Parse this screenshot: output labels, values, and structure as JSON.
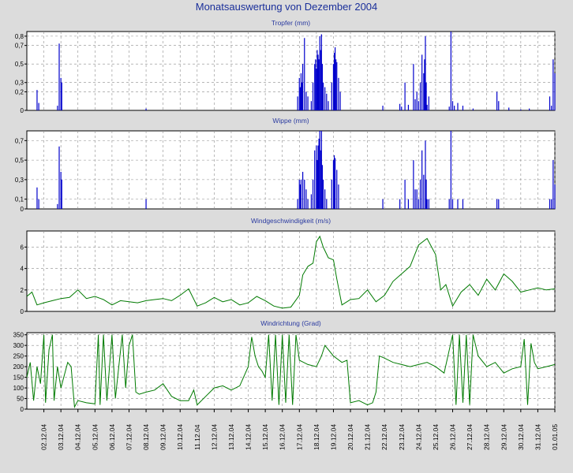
{
  "title": "Monatsauswertung von Dezember 2004",
  "colors": {
    "rain": "#0000cc",
    "wind": "#007a00"
  },
  "chart_data": [
    {
      "type": "bar",
      "title": "Tropfer (mm)",
      "ylim": [
        0,
        0.85
      ],
      "yticks": [
        {
          "v": 0,
          "label": "0"
        },
        {
          "v": 0.2,
          "label": "0,2"
        },
        {
          "v": 0.3,
          "label": "0,3"
        },
        {
          "v": 0.5,
          "label": "0,5"
        },
        {
          "v": 0.7,
          "label": "0,7"
        },
        {
          "v": 0.8,
          "label": "0,8"
        }
      ],
      "grid": true,
      "color": "#0000cc",
      "points": [
        [
          1.6,
          0.22
        ],
        [
          1.7,
          0.08
        ],
        [
          2.8,
          0.05
        ],
        [
          2.9,
          0.72
        ],
        [
          3.0,
          0.35
        ],
        [
          3.05,
          0.3
        ],
        [
          8.0,
          0.02
        ],
        [
          16.9,
          0.15
        ],
        [
          17.0,
          0.35
        ],
        [
          17.05,
          0.25
        ],
        [
          17.1,
          0.4
        ],
        [
          17.15,
          0.3
        ],
        [
          17.2,
          0.5
        ],
        [
          17.3,
          0.78
        ],
        [
          17.4,
          0.2
        ],
        [
          17.5,
          0.15
        ],
        [
          17.7,
          0.1
        ],
        [
          17.8,
          0.3
        ],
        [
          17.9,
          0.5
        ],
        [
          17.95,
          0.55
        ],
        [
          18.0,
          0.45
        ],
        [
          18.05,
          0.65
        ],
        [
          18.1,
          0.6
        ],
        [
          18.15,
          0.55
        ],
        [
          18.2,
          0.8
        ],
        [
          18.25,
          0.65
        ],
        [
          18.3,
          0.82
        ],
        [
          18.35,
          0.5
        ],
        [
          18.4,
          0.3
        ],
        [
          18.5,
          0.25
        ],
        [
          18.6,
          0.18
        ],
        [
          18.7,
          0.1
        ],
        [
          18.9,
          0.3
        ],
        [
          19.0,
          0.5
        ],
        [
          19.05,
          0.62
        ],
        [
          19.1,
          0.68
        ],
        [
          19.15,
          0.55
        ],
        [
          19.2,
          0.52
        ],
        [
          19.3,
          0.35
        ],
        [
          19.4,
          0.2
        ],
        [
          21.9,
          0.05
        ],
        [
          22.9,
          0.07
        ],
        [
          23.0,
          0.04
        ],
        [
          23.2,
          0.3
        ],
        [
          23.4,
          0.06
        ],
        [
          23.7,
          0.5
        ],
        [
          23.8,
          0.12
        ],
        [
          23.9,
          0.2
        ],
        [
          24.0,
          0.1
        ],
        [
          24.1,
          0.3
        ],
        [
          24.2,
          0.6
        ],
        [
          24.3,
          0.4
        ],
        [
          24.35,
          0.55
        ],
        [
          24.4,
          0.8
        ],
        [
          24.45,
          0.3
        ],
        [
          24.5,
          0.06
        ],
        [
          24.6,
          0.15
        ],
        [
          25.8,
          0.04
        ],
        [
          25.9,
          0.85
        ],
        [
          26.0,
          0.1
        ],
        [
          26.1,
          0.05
        ],
        [
          26.3,
          0.08
        ],
        [
          26.6,
          0.05
        ],
        [
          27.2,
          0.02
        ],
        [
          28.6,
          0.2
        ],
        [
          28.7,
          0.1
        ],
        [
          29.3,
          0.03
        ],
        [
          30.0,
          0.01
        ],
        [
          30.5,
          0.02
        ],
        [
          31.7,
          0.15
        ],
        [
          31.8,
          0.05
        ],
        [
          31.9,
          0.55
        ],
        [
          32.0,
          0.4
        ]
      ]
    },
    {
      "type": "bar",
      "title": "Wippe (mm)",
      "ylim": [
        0,
        0.8
      ],
      "yticks": [
        {
          "v": 0,
          "label": "0"
        },
        {
          "v": 0.1,
          "label": "0,1"
        },
        {
          "v": 0.3,
          "label": "0,3"
        },
        {
          "v": 0.5,
          "label": "0,5"
        },
        {
          "v": 0.7,
          "label": "0,7"
        }
      ],
      "grid": true,
      "color": "#0000cc",
      "points": [
        [
          1.6,
          0.22
        ],
        [
          1.7,
          0.1
        ],
        [
          2.8,
          0.05
        ],
        [
          2.9,
          0.64
        ],
        [
          3.0,
          0.38
        ],
        [
          3.05,
          0.3
        ],
        [
          8.0,
          0.1
        ],
        [
          16.9,
          0.1
        ],
        [
          17.0,
          0.3
        ],
        [
          17.05,
          0.25
        ],
        [
          17.1,
          0.3
        ],
        [
          17.2,
          0.38
        ],
        [
          17.3,
          0.3
        ],
        [
          17.4,
          0.2
        ],
        [
          17.5,
          0.1
        ],
        [
          17.7,
          0.15
        ],
        [
          17.8,
          0.3
        ],
        [
          17.9,
          0.6
        ],
        [
          18.0,
          0.65
        ],
        [
          18.05,
          0.5
        ],
        [
          18.1,
          0.65
        ],
        [
          18.15,
          0.72
        ],
        [
          18.2,
          0.8
        ],
        [
          18.25,
          0.6
        ],
        [
          18.3,
          0.8
        ],
        [
          18.35,
          0.45
        ],
        [
          18.4,
          0.3
        ],
        [
          18.5,
          0.2
        ],
        [
          18.6,
          0.1
        ],
        [
          18.9,
          0.3
        ],
        [
          19.0,
          0.5
        ],
        [
          19.05,
          0.55
        ],
        [
          19.1,
          0.52
        ],
        [
          19.2,
          0.4
        ],
        [
          19.3,
          0.25
        ],
        [
          21.9,
          0.1
        ],
        [
          22.9,
          0.1
        ],
        [
          23.2,
          0.3
        ],
        [
          23.4,
          0.1
        ],
        [
          23.7,
          0.5
        ],
        [
          23.8,
          0.2
        ],
        [
          23.9,
          0.2
        ],
        [
          24.0,
          0.1
        ],
        [
          24.1,
          0.3
        ],
        [
          24.2,
          0.6
        ],
        [
          24.3,
          0.35
        ],
        [
          24.4,
          0.7
        ],
        [
          24.45,
          0.3
        ],
        [
          24.5,
          0.1
        ],
        [
          24.6,
          0.1
        ],
        [
          25.8,
          0.1
        ],
        [
          25.9,
          0.8
        ],
        [
          26.0,
          0.1
        ],
        [
          26.3,
          0.1
        ],
        [
          26.6,
          0.1
        ],
        [
          28.6,
          0.1
        ],
        [
          28.7,
          0.1
        ],
        [
          31.7,
          0.1
        ],
        [
          31.8,
          0.1
        ],
        [
          31.9,
          0.5
        ],
        [
          32.0,
          0.25
        ]
      ]
    },
    {
      "type": "line",
      "title": "Windgeschwindigkeit (m/s)",
      "ylim": [
        0,
        7.5
      ],
      "yticks": [
        {
          "v": 0,
          "label": "0"
        },
        {
          "v": 2,
          "label": "2"
        },
        {
          "v": 4,
          "label": "4"
        },
        {
          "v": 6,
          "label": "6"
        }
      ],
      "grid": true,
      "color": "#007a00",
      "points": [
        [
          1,
          1.4
        ],
        [
          1.3,
          1.8
        ],
        [
          1.6,
          0.6
        ],
        [
          2,
          0.8
        ],
        [
          2.5,
          1.0
        ],
        [
          3,
          1.2
        ],
        [
          3.5,
          1.3
        ],
        [
          4,
          2.0
        ],
        [
          4.5,
          1.2
        ],
        [
          5,
          1.4
        ],
        [
          5.5,
          1.1
        ],
        [
          6,
          0.6
        ],
        [
          6.5,
          1.0
        ],
        [
          7,
          0.9
        ],
        [
          7.5,
          0.8
        ],
        [
          8,
          1.0
        ],
        [
          8.5,
          1.1
        ],
        [
          9,
          1.2
        ],
        [
          9.5,
          1.0
        ],
        [
          10,
          1.5
        ],
        [
          10.5,
          2.1
        ],
        [
          11,
          0.5
        ],
        [
          11.5,
          0.8
        ],
        [
          12,
          1.3
        ],
        [
          12.5,
          0.9
        ],
        [
          13,
          1.1
        ],
        [
          13.5,
          0.6
        ],
        [
          14,
          0.8
        ],
        [
          14.5,
          1.4
        ],
        [
          15,
          1.0
        ],
        [
          15.5,
          0.5
        ],
        [
          16,
          0.3
        ],
        [
          16.5,
          0.4
        ],
        [
          17,
          1.5
        ],
        [
          17.2,
          3.4
        ],
        [
          17.5,
          4.2
        ],
        [
          17.8,
          4.5
        ],
        [
          18,
          6.5
        ],
        [
          18.2,
          7.0
        ],
        [
          18.4,
          6.0
        ],
        [
          18.7,
          5.0
        ],
        [
          19,
          4.8
        ],
        [
          19.2,
          3.0
        ],
        [
          19.5,
          0.6
        ],
        [
          20,
          1.1
        ],
        [
          20.5,
          1.2
        ],
        [
          21,
          2.0
        ],
        [
          21.5,
          0.9
        ],
        [
          22,
          1.5
        ],
        [
          22.5,
          2.8
        ],
        [
          23,
          3.5
        ],
        [
          23.5,
          4.2
        ],
        [
          24,
          6.2
        ],
        [
          24.5,
          6.8
        ],
        [
          25,
          5.3
        ],
        [
          25.3,
          2.0
        ],
        [
          25.6,
          2.5
        ],
        [
          26,
          0.5
        ],
        [
          26.5,
          1.8
        ],
        [
          27,
          2.5
        ],
        [
          27.5,
          1.5
        ],
        [
          28,
          3.0
        ],
        [
          28.5,
          2.0
        ],
        [
          29,
          3.5
        ],
        [
          29.5,
          2.8
        ],
        [
          30,
          1.8
        ],
        [
          30.5,
          2.0
        ],
        [
          31,
          2.2
        ],
        [
          31.5,
          2.0
        ],
        [
          32,
          2.1
        ]
      ]
    },
    {
      "type": "line",
      "title": "Windrichtung (Grad)",
      "ylim": [
        0,
        360
      ],
      "yticks": [
        {
          "v": 0,
          "label": "0"
        },
        {
          "v": 50,
          "label": "50"
        },
        {
          "v": 100,
          "label": "100"
        },
        {
          "v": 150,
          "label": "150"
        },
        {
          "v": 200,
          "label": "200"
        },
        {
          "v": 250,
          "label": "250"
        },
        {
          "v": 300,
          "label": "300"
        },
        {
          "v": 350,
          "label": "350"
        }
      ],
      "grid": true,
      "color": "#007a00",
      "points": [
        [
          1,
          150
        ],
        [
          1.2,
          220
        ],
        [
          1.4,
          40
        ],
        [
          1.6,
          200
        ],
        [
          1.8,
          120
        ],
        [
          2,
          350
        ],
        [
          2.1,
          30
        ],
        [
          2.3,
          280
        ],
        [
          2.5,
          350
        ],
        [
          2.6,
          40
        ],
        [
          2.8,
          200
        ],
        [
          3,
          100
        ],
        [
          3.2,
          160
        ],
        [
          3.4,
          220
        ],
        [
          3.6,
          200
        ],
        [
          3.8,
          10
        ],
        [
          4,
          40
        ],
        [
          4.5,
          30
        ],
        [
          5,
          25
        ],
        [
          5.2,
          350
        ],
        [
          5.3,
          20
        ],
        [
          5.5,
          350
        ],
        [
          5.7,
          40
        ],
        [
          6,
          350
        ],
        [
          6.2,
          50
        ],
        [
          6.4,
          200
        ],
        [
          6.6,
          350
        ],
        [
          6.8,
          100
        ],
        [
          7,
          300
        ],
        [
          7.2,
          350
        ],
        [
          7.4,
          80
        ],
        [
          7.6,
          70
        ],
        [
          8,
          80
        ],
        [
          8.5,
          90
        ],
        [
          9,
          120
        ],
        [
          9.5,
          60
        ],
        [
          10,
          40
        ],
        [
          10.5,
          40
        ],
        [
          10.8,
          90
        ],
        [
          11,
          20
        ],
        [
          11.5,
          60
        ],
        [
          12,
          100
        ],
        [
          12.5,
          110
        ],
        [
          13,
          90
        ],
        [
          13.5,
          110
        ],
        [
          14,
          200
        ],
        [
          14.2,
          340
        ],
        [
          14.4,
          250
        ],
        [
          14.6,
          200
        ],
        [
          14.8,
          180
        ],
        [
          15,
          150
        ],
        [
          15.2,
          350
        ],
        [
          15.4,
          40
        ],
        [
          15.6,
          350
        ],
        [
          15.8,
          20
        ],
        [
          16,
          350
        ],
        [
          16.2,
          30
        ],
        [
          16.4,
          350
        ],
        [
          16.6,
          20
        ],
        [
          16.8,
          350
        ],
        [
          17,
          230
        ],
        [
          17.5,
          210
        ],
        [
          18,
          200
        ],
        [
          18.3,
          250
        ],
        [
          18.5,
          300
        ],
        [
          19,
          250
        ],
        [
          19.5,
          220
        ],
        [
          19.8,
          230
        ],
        [
          20,
          30
        ],
        [
          20.5,
          40
        ],
        [
          21,
          20
        ],
        [
          21.3,
          30
        ],
        [
          21.5,
          80
        ],
        [
          21.7,
          250
        ],
        [
          22,
          240
        ],
        [
          22.5,
          220
        ],
        [
          23,
          210
        ],
        [
          23.5,
          200
        ],
        [
          24,
          210
        ],
        [
          24.5,
          220
        ],
        [
          25,
          200
        ],
        [
          25.5,
          170
        ],
        [
          26,
          350
        ],
        [
          26.2,
          20
        ],
        [
          26.4,
          350
        ],
        [
          26.6,
          30
        ],
        [
          26.8,
          350
        ],
        [
          27,
          20
        ],
        [
          27.2,
          350
        ],
        [
          27.5,
          250
        ],
        [
          28,
          200
        ],
        [
          28.5,
          220
        ],
        [
          29,
          170
        ],
        [
          29.5,
          190
        ],
        [
          30,
          200
        ],
        [
          30.2,
          330
        ],
        [
          30.4,
          20
        ],
        [
          30.6,
          310
        ],
        [
          30.8,
          220
        ],
        [
          31,
          190
        ],
        [
          31.5,
          200
        ],
        [
          32,
          210
        ]
      ]
    }
  ],
  "x_axis": {
    "xlim": [
      1,
      32
    ],
    "ticks": [
      "02.12.04",
      "03.12.04",
      "04.12.04",
      "05.12.04",
      "06.12.04",
      "07.12.04",
      "08.12.04",
      "09.12.04",
      "10.12.04",
      "11.12.04",
      "12.12.04",
      "13.12.04",
      "14.12.04",
      "15.12.04",
      "16.12.04",
      "17.12.04",
      "18.12.04",
      "19.12.04",
      "20.12.04",
      "21.12.04",
      "22.12.04",
      "23.12.04",
      "24.12.04",
      "25.12.04",
      "26.12.04",
      "27.12.04",
      "28.12.04",
      "29.12.04",
      "30.12.04",
      "31.12.04",
      "01.01.05"
    ]
  }
}
